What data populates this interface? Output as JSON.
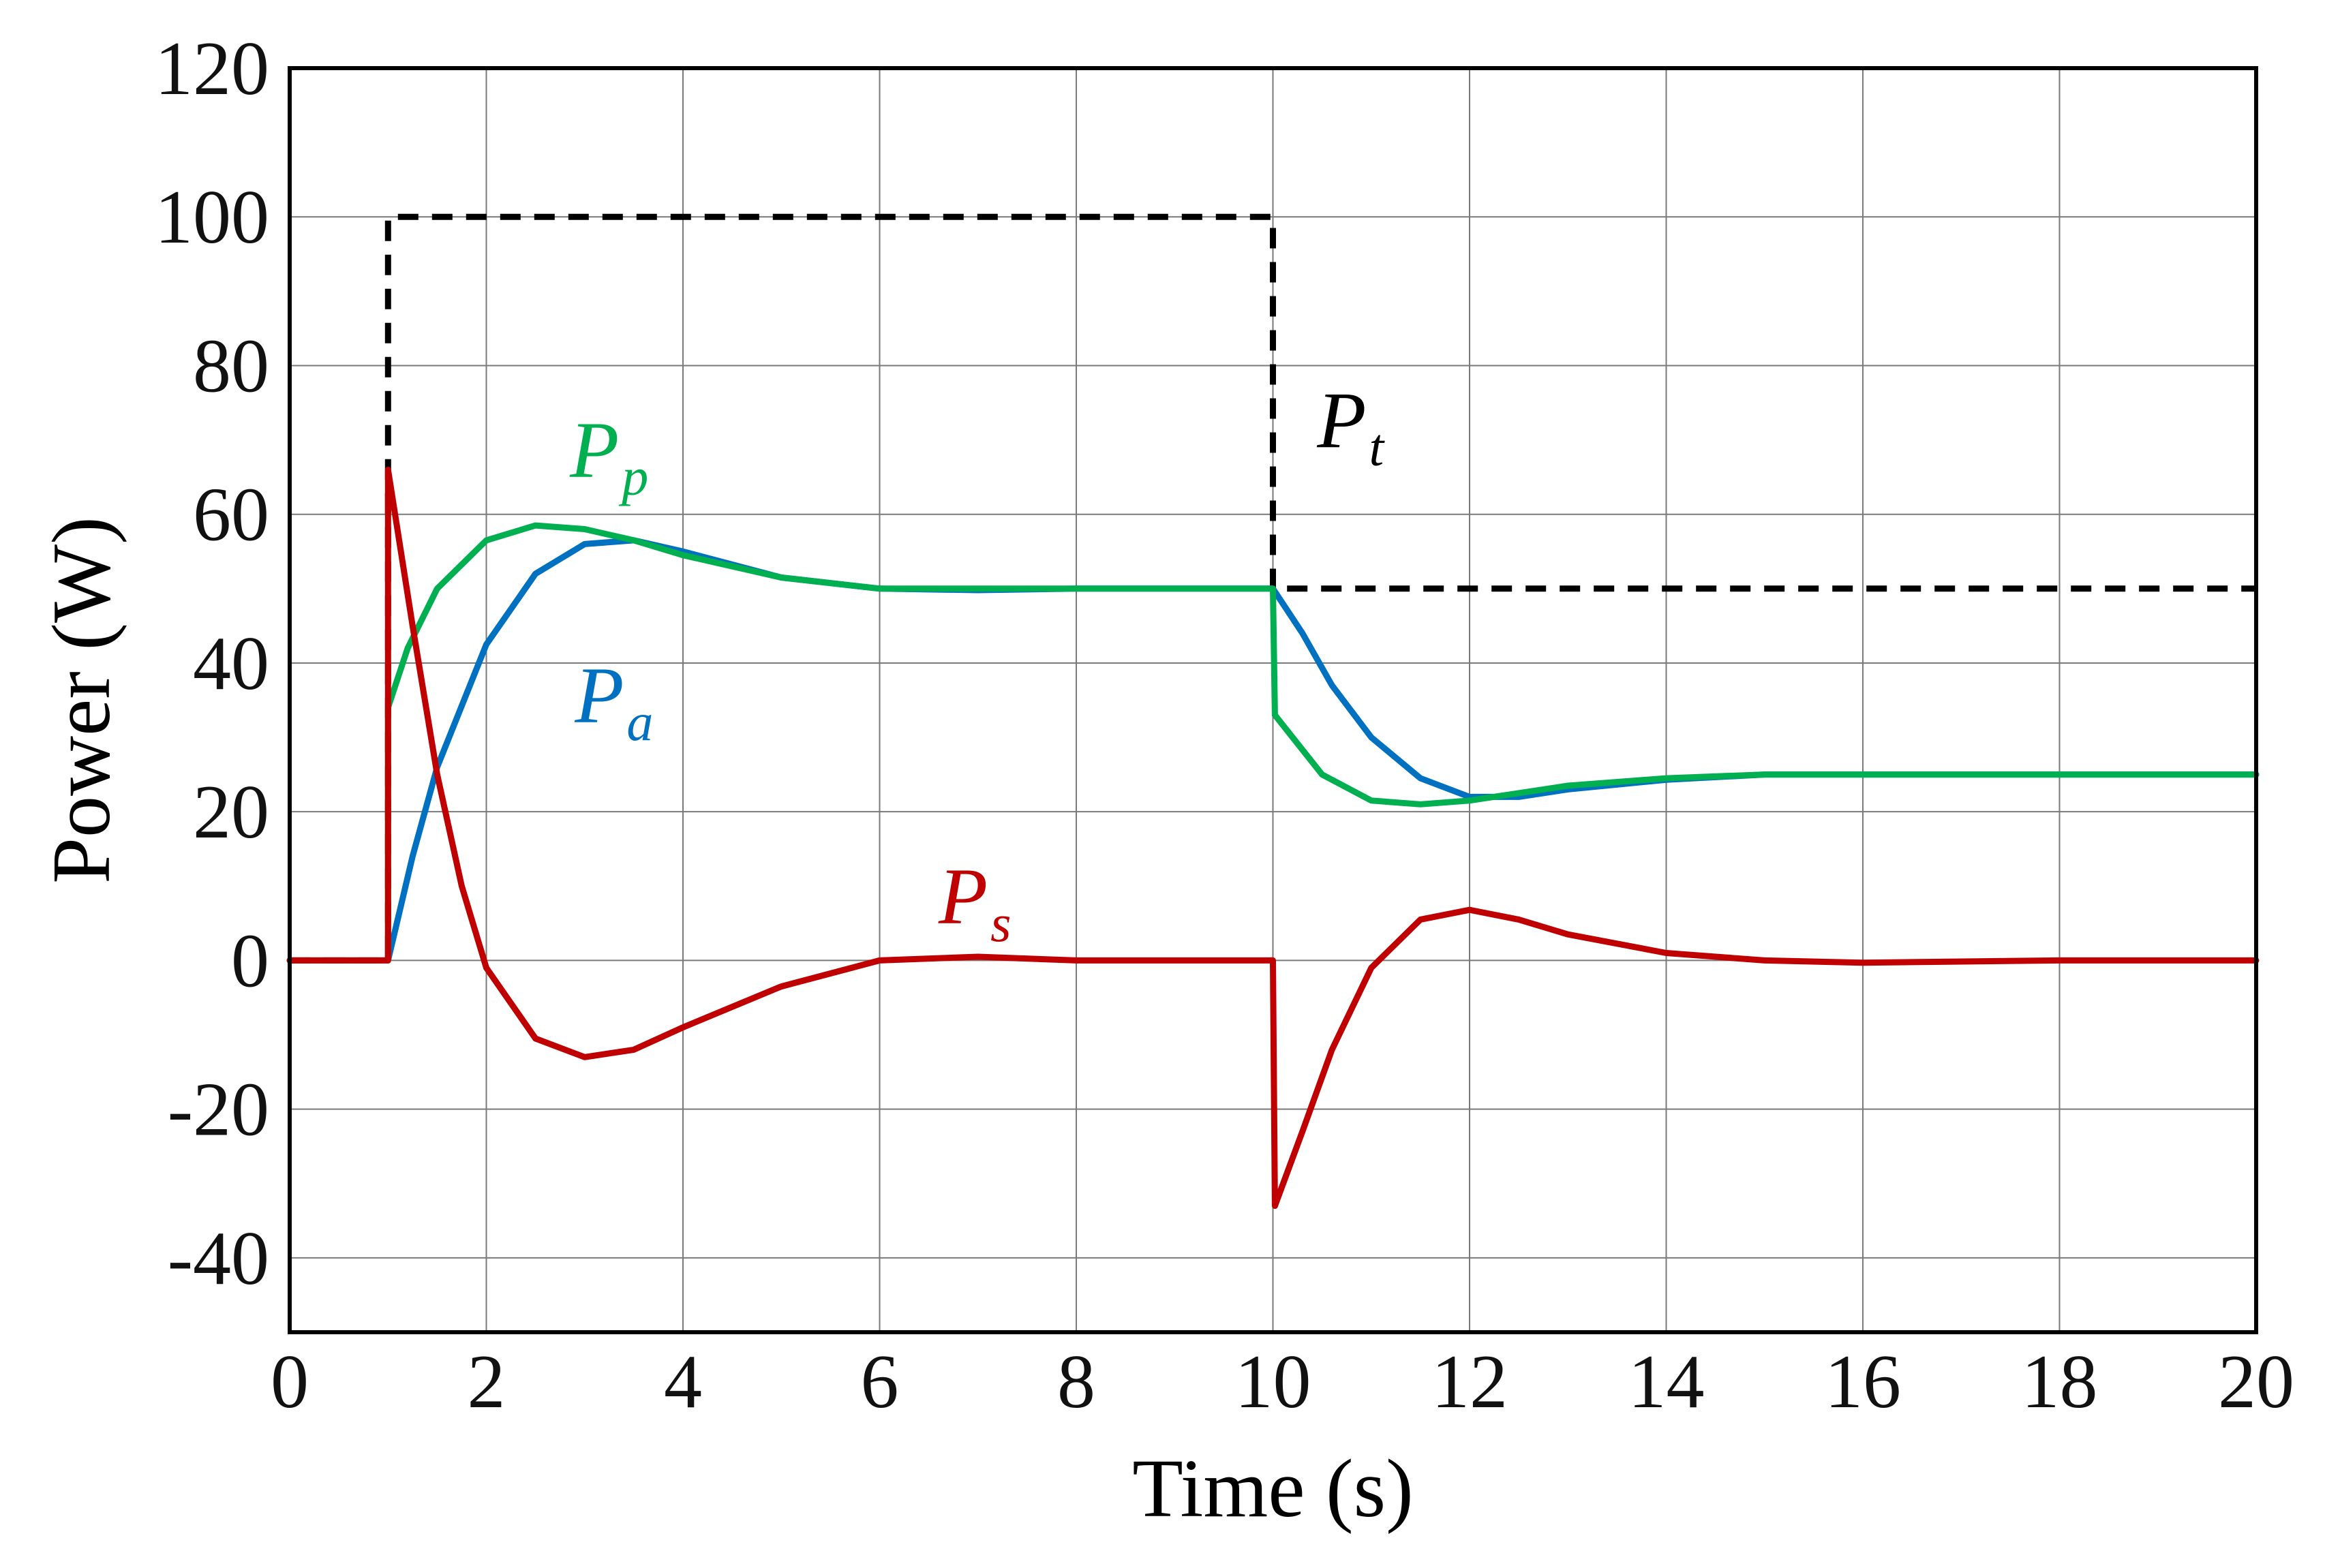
{
  "chart_data": {
    "type": "line",
    "title": "",
    "xlabel": "Time (s)",
    "ylabel": "Power (W)",
    "xlim": [
      0,
      20
    ],
    "ylim": [
      -50,
      120
    ],
    "xticks": [
      0,
      2,
      4,
      6,
      8,
      10,
      12,
      14,
      16,
      18,
      20
    ],
    "xtick_labels": [
      "0",
      "2",
      "4",
      "6",
      "8",
      "10",
      "12",
      "14",
      "16",
      "18",
      "20"
    ],
    "yticks": [
      -40,
      -20,
      0,
      20,
      40,
      60,
      80,
      100,
      120
    ],
    "ytick_labels": [
      "-40",
      "-20",
      "0",
      "20",
      "40",
      "60",
      "80",
      "100",
      "120"
    ],
    "grid": true,
    "series": [
      {
        "name": "Pt",
        "main": "P",
        "sub": "t",
        "color": "#000000",
        "style": "dashed",
        "x": [
          0,
          1,
          1,
          10,
          10,
          20
        ],
        "y": [
          0,
          0,
          100,
          100,
          50,
          50
        ]
      },
      {
        "name": "Pp",
        "main": "P",
        "sub": "p",
        "color": "#00b050",
        "style": "solid",
        "x": [
          0,
          1,
          1,
          1.2,
          1.5,
          2,
          2.5,
          3,
          3.5,
          4,
          5,
          6,
          8,
          10,
          10.02,
          10.5,
          11,
          11.5,
          12,
          12.5,
          13,
          14,
          15,
          16,
          18,
          20
        ],
        "y": [
          0,
          0,
          34,
          42,
          50,
          56.5,
          58.5,
          58,
          56.5,
          54.5,
          51.5,
          50,
          50,
          50,
          33,
          25,
          21.5,
          21,
          21.5,
          22.5,
          23.5,
          24.5,
          25,
          25,
          25,
          25
        ]
      },
      {
        "name": "Pa",
        "main": "P",
        "sub": "a",
        "color": "#0070c0",
        "style": "solid",
        "x": [
          0,
          1,
          1.25,
          1.5,
          2,
          2.5,
          3,
          3.5,
          4,
          5,
          6,
          7,
          8,
          10,
          10.3,
          10.6,
          11,
          11.5,
          12,
          12.5,
          13,
          14,
          15,
          16,
          18,
          20
        ],
        "y": [
          0,
          0,
          14,
          26,
          42.5,
          52,
          56,
          56.5,
          55,
          51.5,
          50,
          49.8,
          50,
          50,
          44,
          37,
          30,
          24.5,
          22,
          22,
          23,
          24.3,
          25,
          25,
          25,
          25
        ]
      },
      {
        "name": "Ps",
        "main": "P",
        "sub": "s",
        "color": "#c00000",
        "style": "solid",
        "x": [
          0,
          1,
          1,
          1.25,
          1.5,
          1.75,
          2,
          2.5,
          3,
          3.5,
          4,
          5,
          6,
          7,
          8,
          10,
          10.02,
          10.3,
          10.6,
          11,
          11.5,
          12,
          12.5,
          13,
          14,
          15,
          16,
          18,
          20
        ],
        "y": [
          0,
          0,
          66,
          45,
          25,
          10,
          -1,
          -10.5,
          -13,
          -12,
          -9,
          -3.5,
          0,
          0.5,
          0,
          0,
          -33,
          -23,
          -12,
          -1,
          5.5,
          6.8,
          5.5,
          3.5,
          1,
          0,
          -0.3,
          0,
          0
        ]
      }
    ],
    "annotations": [
      {
        "series": "Pp",
        "x": 2.85,
        "y": 65
      },
      {
        "series": "Pt",
        "x": 10.45,
        "y": 69
      },
      {
        "series": "Pa",
        "x": 2.9,
        "y": 32
      },
      {
        "series": "Ps",
        "x": 6.6,
        "y": 5
      }
    ]
  }
}
